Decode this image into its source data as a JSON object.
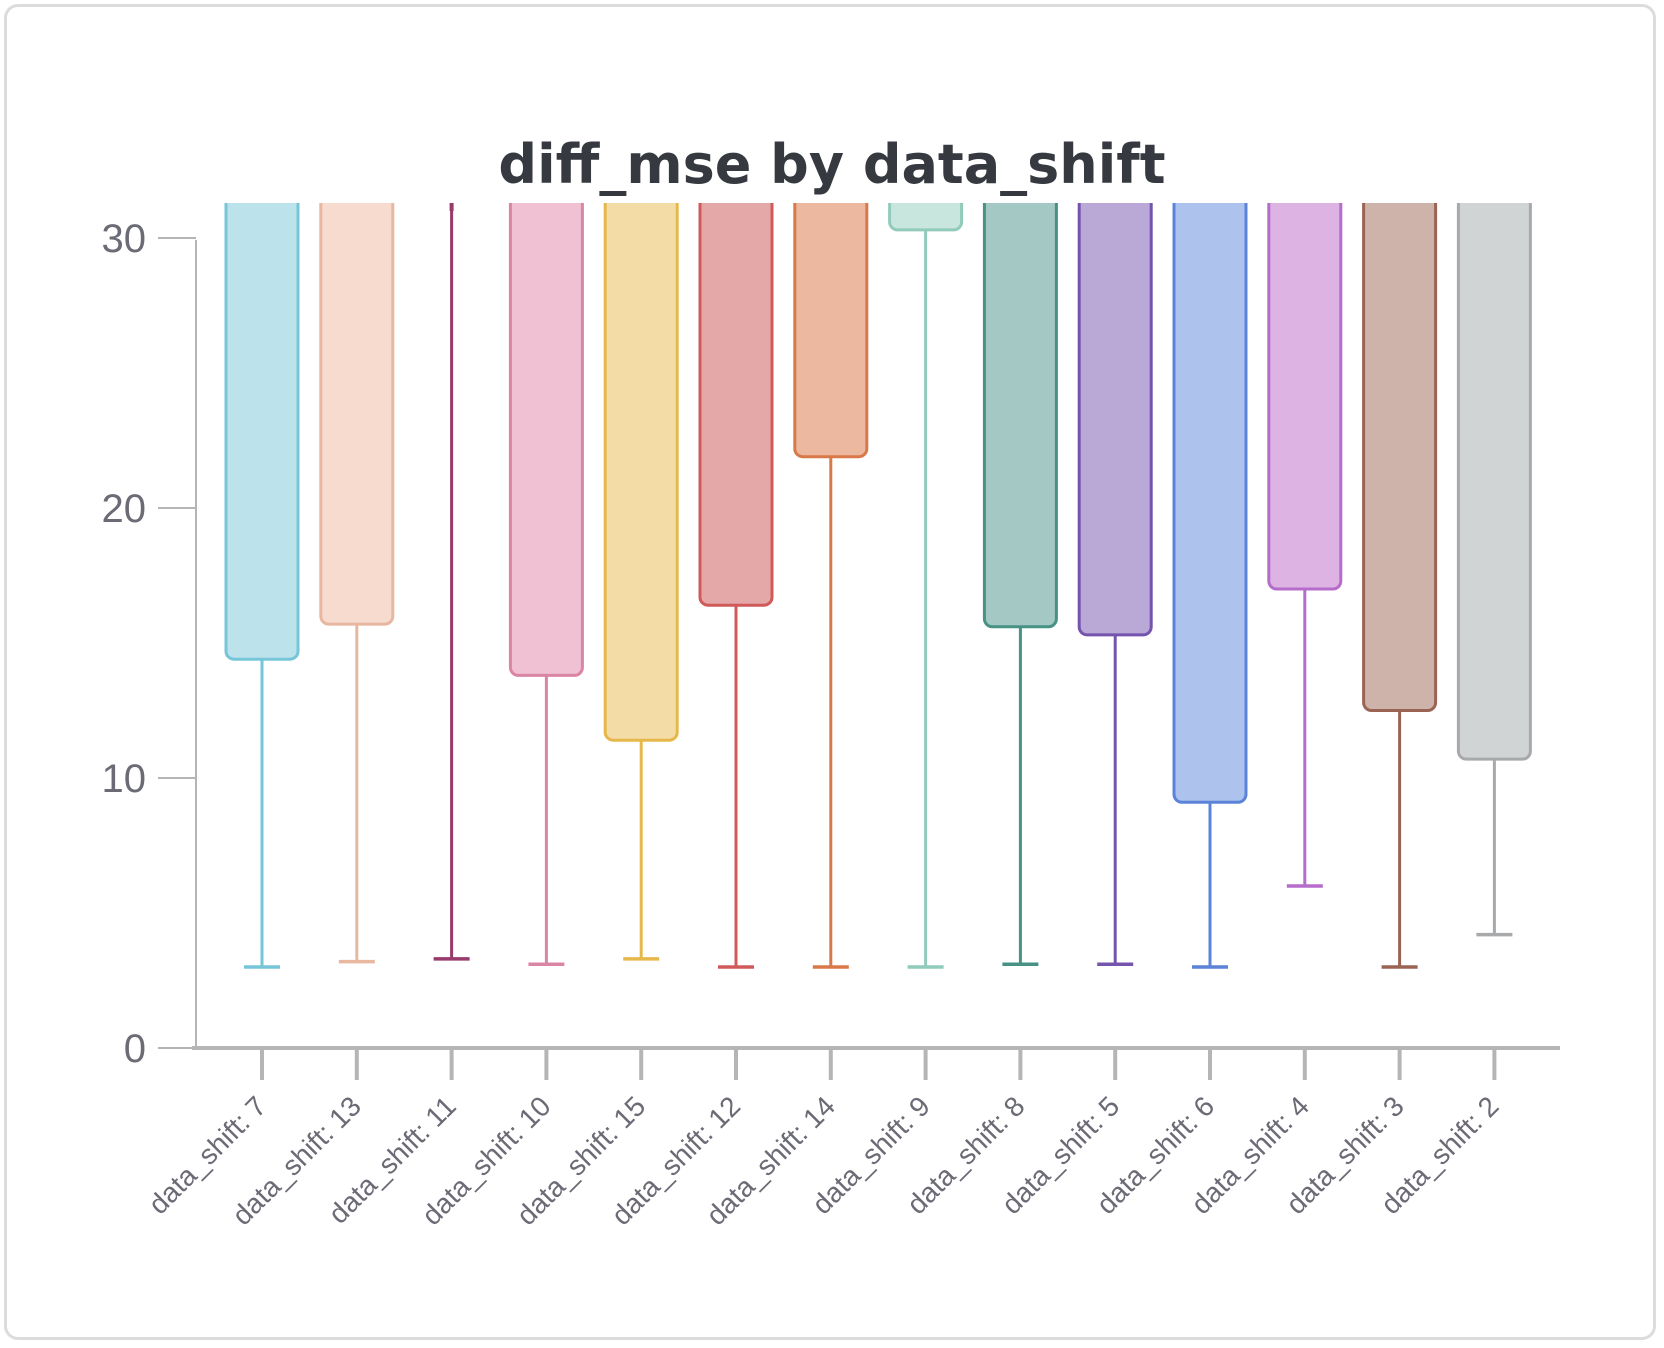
{
  "chart_data": {
    "type": "box",
    "title": "diff_mse by data_shift",
    "xlabel": "",
    "ylabel": "",
    "ylim": [
      0,
      31
    ],
    "yticks": [
      0,
      10,
      20,
      30
    ],
    "grid": false,
    "legend": "none",
    "categories": [
      "data_shift: 7",
      "data_shift: 13",
      "data_shift: 11",
      "data_shift: 10",
      "data_shift: 15",
      "data_shift: 12",
      "data_shift: 14",
      "data_shift: 9",
      "data_shift: 8",
      "data_shift: 5",
      "data_shift: 6",
      "data_shift: 4",
      "data_shift: 3",
      "data_shift: 2"
    ],
    "boxes": [
      {
        "category": "data_shift: 7",
        "whisker_low": 3.0,
        "q1": 14.4,
        "color": "#76c5d8",
        "fill": "#bce2ec"
      },
      {
        "category": "data_shift: 13",
        "whisker_low": 3.2,
        "q1": 15.7,
        "color": "#e8b7a0",
        "fill": "#f6dbce"
      },
      {
        "category": "data_shift: 11",
        "whisker_low": 3.3,
        "q1": 31.0,
        "color": "#983a6c",
        "fill": "#c99cb4"
      },
      {
        "category": "data_shift: 10",
        "whisker_low": 3.1,
        "q1": 13.8,
        "color": "#db85a5",
        "fill": "#efc1d2"
      },
      {
        "category": "data_shift: 15",
        "whisker_low": 3.3,
        "q1": 11.4,
        "color": "#e6b84b",
        "fill": "#f3dca6"
      },
      {
        "category": "data_shift: 12",
        "whisker_low": 3.0,
        "q1": 16.4,
        "color": "#d05a5a",
        "fill": "#e5a8a8"
      },
      {
        "category": "data_shift: 14",
        "whisker_low": 3.0,
        "q1": 21.9,
        "color": "#d9794a",
        "fill": "#ecb9a0"
      },
      {
        "category": "data_shift: 9",
        "whisker_low": 3.0,
        "q1": 30.3,
        "color": "#91cbbb",
        "fill": "#c9e6de"
      },
      {
        "category": "data_shift: 8",
        "whisker_low": 3.1,
        "q1": 15.6,
        "color": "#479185",
        "fill": "#a4c8c3"
      },
      {
        "category": "data_shift: 5",
        "whisker_low": 3.1,
        "q1": 15.3,
        "color": "#7554ad",
        "fill": "#baa9d6"
      },
      {
        "category": "data_shift: 6",
        "whisker_low": 3.0,
        "q1": 9.1,
        "color": "#5b84d8",
        "fill": "#adc2ec"
      },
      {
        "category": "data_shift: 4",
        "whisker_low": 6.0,
        "q1": 17.0,
        "color": "#b56ccb",
        "fill": "#dcb3e3"
      },
      {
        "category": "data_shift: 3",
        "whisker_low": 3.0,
        "q1": 12.5,
        "color": "#9a6455",
        "fill": "#cdb3aa"
      },
      {
        "category": "data_shift: 2",
        "whisker_low": 4.2,
        "q1": 10.7,
        "color": "#a7a9ab",
        "fill": "#d1d4d5"
      }
    ]
  }
}
